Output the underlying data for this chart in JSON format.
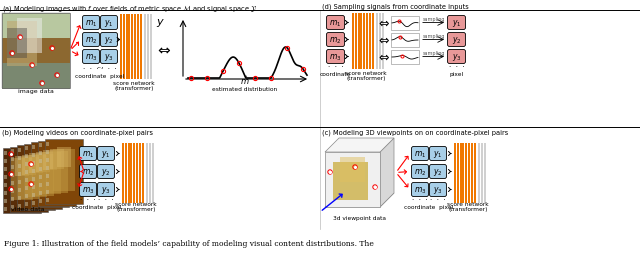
{
  "title": "Figure 1: Illustration of the field models’ capability of modeling visual content distributions. The",
  "panel_a_label": "(a) Modeling images with $f$ over fields of metric space $\\mathcal{M}$ and signal space $\\mathcal{Y}$",
  "panel_b_label": "(b) Modeling videos on coordinate-pixel pairs",
  "panel_c_label": "(c) Modeling 3D viewpoints on on coordinate-pixel pairs",
  "panel_d_label": "(d) Sampling signals from coordinate inputs",
  "bg_color": "#ffffff",
  "box_blue": "#a8cfe8",
  "box_pink": "#e89898",
  "orange_color": "#f07800",
  "gray_color": "#c8c8c8"
}
